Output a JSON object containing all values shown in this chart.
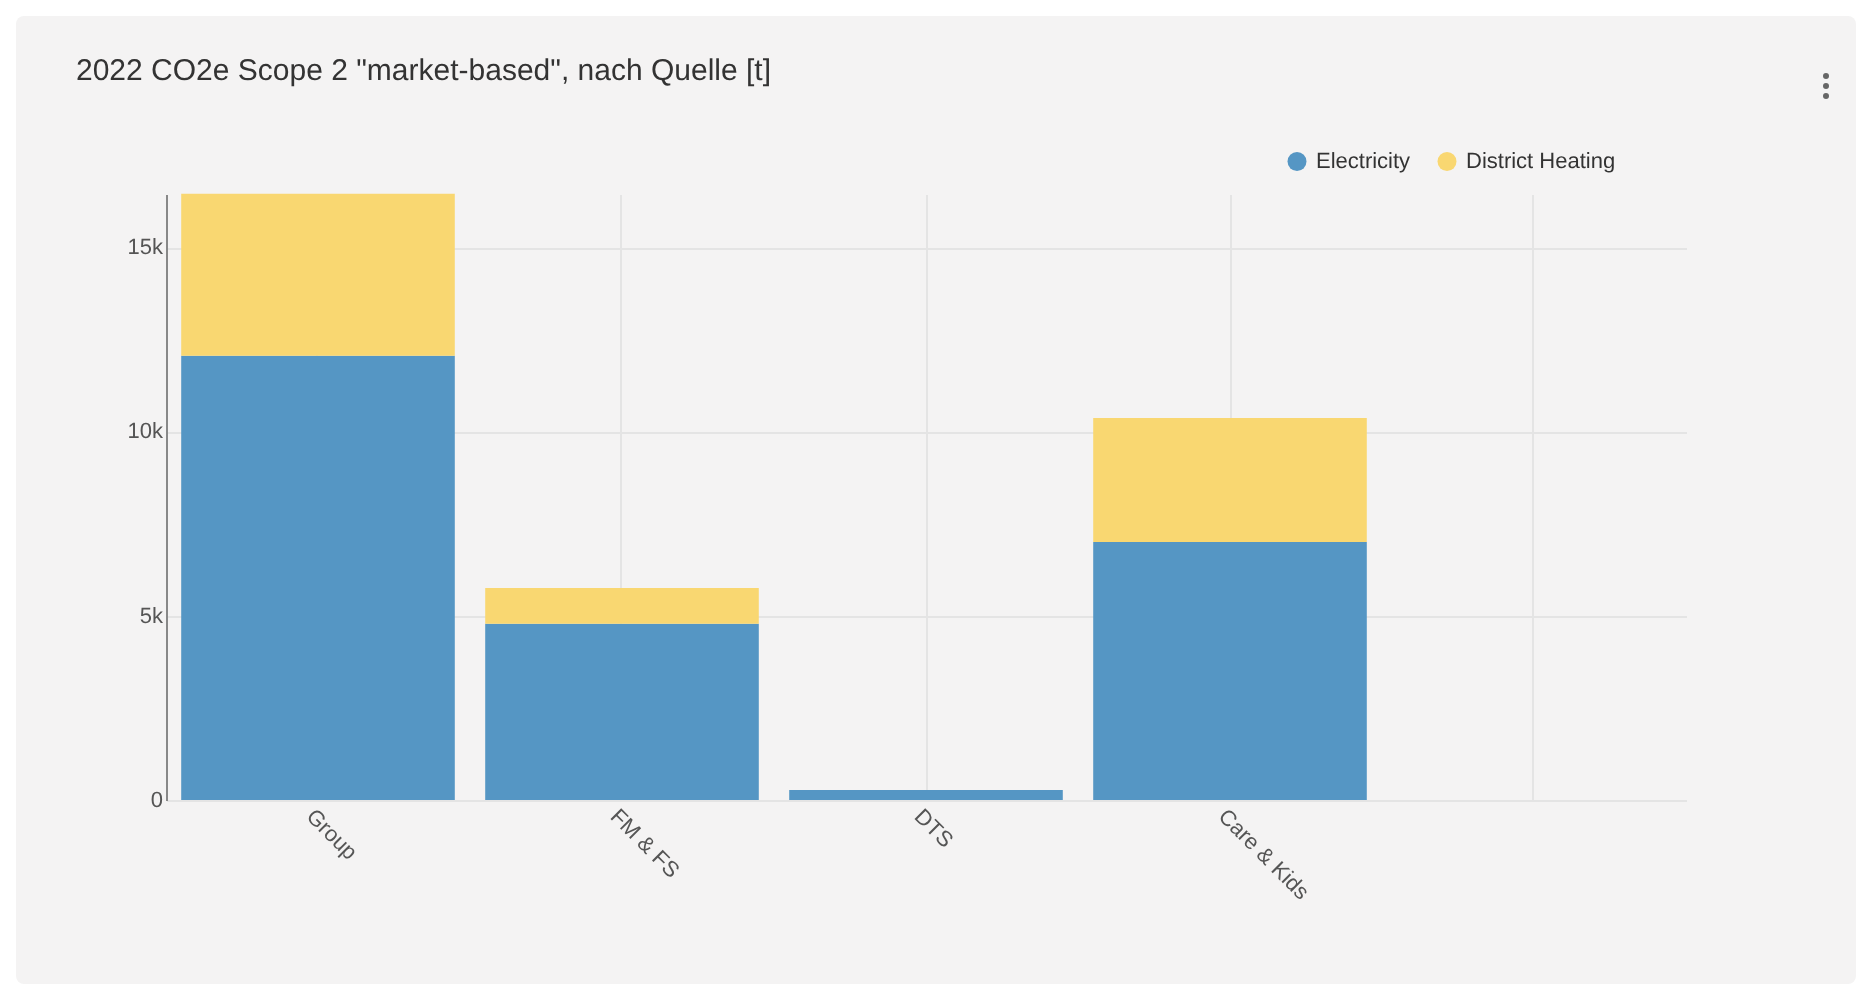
{
  "chart_data": {
    "type": "bar",
    "title": "2022 CO2e Scope 2 \"market-based\", nach Quelle [t]",
    "categories": [
      "Group",
      "FM & FS",
      "DTS",
      "Care & Kids",
      null
    ],
    "stacked": true,
    "series": [
      {
        "name": "Electricity",
        "color": "#5596c4",
        "values": [
          12050,
          4780,
          270,
          7000,
          0
        ]
      },
      {
        "name": "District Heating",
        "color": "#f9d771",
        "values": [
          4400,
          970,
          0,
          3360,
          0
        ]
      }
    ],
    "ylim": [
      0,
      16440
    ],
    "yticks": [
      0,
      {
        "value": 5000,
        "label": "5k"
      },
      {
        "value": 10000,
        "label": "10k"
      },
      {
        "value": 15000,
        "label": "15k"
      }
    ],
    "grid": true,
    "legend": "top right"
  }
}
